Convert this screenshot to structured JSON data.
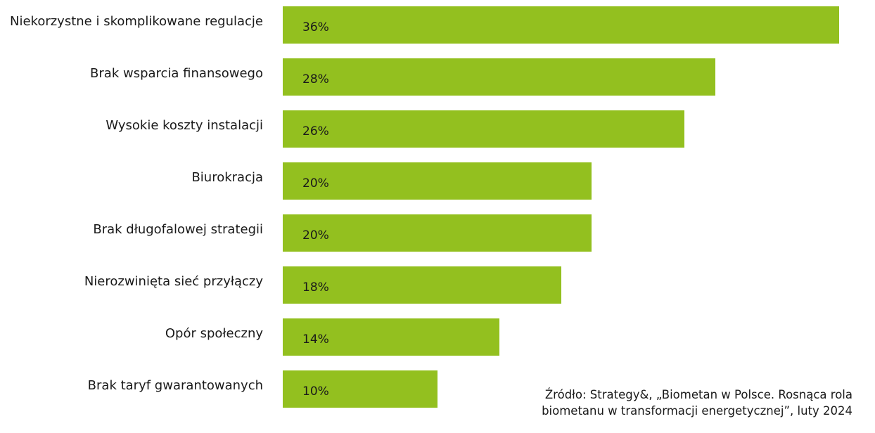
{
  "chart_data": {
    "type": "bar",
    "orientation": "horizontal",
    "categories": [
      "Niekorzystne i skomplikowane regulacje",
      "Brak wsparcia finansowego",
      "Wysokie koszty instalacji",
      "Biurokracja",
      "Brak długofalowej strategii",
      "Nierozwinięta sieć przyłączy",
      "Opór społeczny",
      "Brak taryf gwarantowanych"
    ],
    "values": [
      36,
      28,
      26,
      20,
      20,
      18,
      14,
      10
    ],
    "value_labels": [
      "36%",
      "28%",
      "26%",
      "20%",
      "20%",
      "18%",
      "14%",
      "10%"
    ],
    "unit": "%",
    "bar_color": "#93c01f",
    "xlim": [
      0,
      36
    ],
    "grid": false,
    "legend": "none"
  },
  "source": {
    "line1": "Źródło: Strategy&, „Biometan w Polsce. Rosnąca rola",
    "line2": "biometanu w transformacji energetycznej”, luty 2024"
  }
}
